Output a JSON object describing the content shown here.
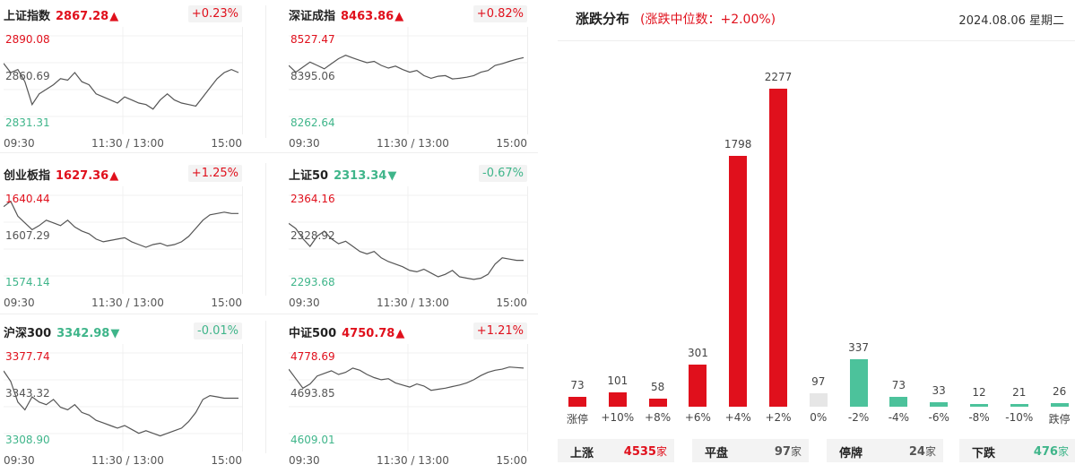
{
  "indices": [
    {
      "name": "上证指数",
      "value": "2867.28",
      "arrow": "▲",
      "dir": "up",
      "change": "+0.23%",
      "ymax": "2890.08",
      "ymid": "2860.69",
      "ymin": "2831.31",
      "x": [
        "09:30",
        "11:30 / 13:00",
        "15:00"
      ],
      "series": [
        2872,
        2866,
        2868,
        2860,
        2845,
        2852,
        2855,
        2858,
        2862,
        2861,
        2866,
        2860,
        2858,
        2852,
        2850,
        2848,
        2846,
        2850,
        2848,
        2846,
        2845,
        2842,
        2848,
        2852,
        2848,
        2846,
        2845,
        2844,
        2850,
        2856,
        2862,
        2866,
        2868,
        2866
      ]
    },
    {
      "name": "深证成指",
      "value": "8463.86",
      "arrow": "▲",
      "dir": "up",
      "change": "+0.82%",
      "ymax": "8527.47",
      "ymid": "8395.06",
      "ymin": "8262.64",
      "x": [
        "09:30",
        "11:30 / 13:00",
        "15:00"
      ],
      "series": [
        8440,
        8420,
        8435,
        8450,
        8440,
        8430,
        8445,
        8460,
        8470,
        8462,
        8455,
        8448,
        8452,
        8440,
        8432,
        8438,
        8428,
        8420,
        8425,
        8410,
        8402,
        8408,
        8410,
        8400,
        8402,
        8405,
        8410,
        8420,
        8425,
        8440,
        8445,
        8452,
        8458,
        8463
      ]
    },
    {
      "name": "创业板指",
      "value": "1627.36",
      "arrow": "▲",
      "dir": "up",
      "change": "+1.25%",
      "ymax": "1640.44",
      "ymid": "1607.29",
      "ymin": "1574.14",
      "x": [
        "09:30",
        "11:30 / 13:00",
        "15:00"
      ],
      "series": [
        1632,
        1636,
        1625,
        1620,
        1615,
        1618,
        1622,
        1620,
        1618,
        1622,
        1617,
        1614,
        1612,
        1608,
        1606,
        1607,
        1608,
        1609,
        1606,
        1604,
        1602,
        1604,
        1605,
        1603,
        1604,
        1606,
        1610,
        1616,
        1622,
        1626,
        1627,
        1628,
        1627,
        1627
      ]
    },
    {
      "name": "上证50",
      "value": "2313.34",
      "arrow": "▼",
      "dir": "down",
      "change": "-0.67%",
      "ymax": "2364.16",
      "ymid": "2328.92",
      "ymin": "2293.68",
      "x": [
        "09:30",
        "11:30 / 13:00",
        "15:00"
      ],
      "series": [
        2342,
        2338,
        2330,
        2324,
        2332,
        2336,
        2330,
        2326,
        2328,
        2324,
        2320,
        2318,
        2320,
        2315,
        2312,
        2310,
        2308,
        2305,
        2304,
        2306,
        2303,
        2300,
        2302,
        2305,
        2300,
        2299,
        2298,
        2299,
        2302,
        2310,
        2315,
        2314,
        2313,
        2313
      ]
    },
    {
      "name": "沪深300",
      "value": "3342.98",
      "arrow": "▼",
      "dir": "down",
      "change": "-0.01%",
      "ymax": "3377.74",
      "ymid": "3343.32",
      "ymin": "3308.90",
      "x": [
        "09:30",
        "11:30 / 13:00",
        "15:00"
      ],
      "series": [
        3364,
        3356,
        3340,
        3334,
        3344,
        3340,
        3338,
        3342,
        3336,
        3334,
        3338,
        3332,
        3330,
        3326,
        3324,
        3322,
        3320,
        3322,
        3319,
        3316,
        3318,
        3316,
        3314,
        3316,
        3318,
        3320,
        3325,
        3332,
        3342,
        3345,
        3344,
        3343,
        3343,
        3343
      ]
    },
    {
      "name": "中证500",
      "value": "4750.78",
      "arrow": "▲",
      "dir": "up",
      "change": "+1.21%",
      "ymax": "4778.69",
      "ymid": "4693.85",
      "ymin": "4609.01",
      "x": [
        "09:30",
        "11:30 / 13:00",
        "15:00"
      ],
      "series": [
        4748,
        4730,
        4712,
        4720,
        4735,
        4740,
        4745,
        4738,
        4742,
        4750,
        4746,
        4738,
        4732,
        4728,
        4730,
        4722,
        4718,
        4714,
        4720,
        4716,
        4708,
        4710,
        4712,
        4715,
        4718,
        4722,
        4728,
        4736,
        4742,
        4746,
        4748,
        4752,
        4751,
        4750
      ]
    }
  ],
  "distribution": {
    "title": "涨跌分布",
    "subtitle": "(涨跌中位数：+2.00%)",
    "date": "2024.08.06 星期二",
    "colors": {
      "up": "#e0101c",
      "flat": "#e6e6e6",
      "down": "#4cc29b"
    },
    "chart_data": {
      "type": "bar",
      "categories": [
        "涨停",
        "+10%",
        "+8%",
        "+6%",
        "+4%",
        "+2%",
        "0%",
        "-2%",
        "-4%",
        "-6%",
        "-8%",
        "-10%",
        "跌停"
      ],
      "values": [
        73,
        101,
        58,
        301,
        1798,
        2277,
        97,
        337,
        73,
        33,
        12,
        21,
        26
      ],
      "ylim": [
        0,
        2277
      ]
    },
    "summary": [
      {
        "label": "上涨",
        "value": "4535",
        "unit": "家",
        "color": "#e0101c"
      },
      {
        "label": "平盘",
        "value": "97",
        "unit": "家",
        "color": "#555555"
      },
      {
        "label": "停牌",
        "value": "24",
        "unit": "家",
        "color": "#555555"
      },
      {
        "label": "下跌",
        "value": "476",
        "unit": "家",
        "color": "#3fb58a"
      }
    ]
  }
}
